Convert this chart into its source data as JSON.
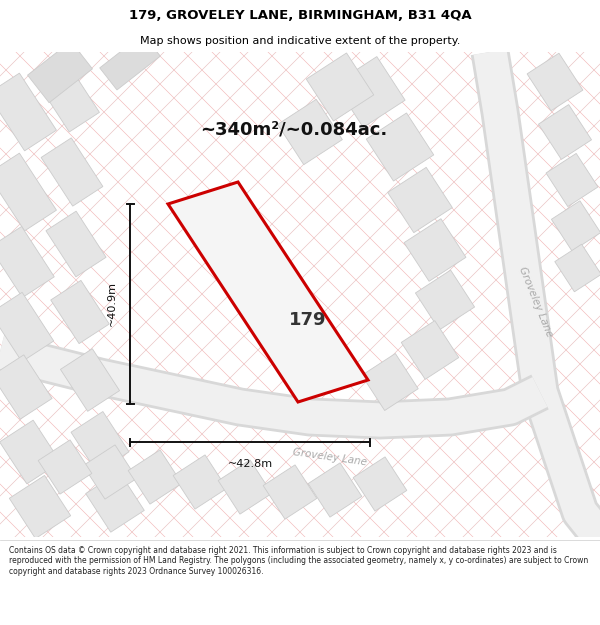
{
  "title_line1": "179, GROVELEY LANE, BIRMINGHAM, B31 4QA",
  "title_line2": "Map shows position and indicative extent of the property.",
  "area_label": "~340m²/~0.084ac.",
  "property_number": "179",
  "width_label": "~42.8m",
  "height_label": "~40.9m",
  "footer_text": "Contains OS data © Crown copyright and database right 2021. This information is subject to Crown copyright and database rights 2023 and is reproduced with the permission of HM Land Registry. The polygons (including the associated geometry, namely x, y co-ordinates) are subject to Crown copyright and database rights 2023 Ordnance Survey 100026316.",
  "map_bg": "#f9f9f9",
  "plot_line_color": "#cc0000",
  "dim_line_color": "#111111",
  "title_color": "#000000",
  "footer_color": "#222222",
  "cadastral_line_color": "#f2b8b8",
  "cadastral_line_color2": "#e8c0c0",
  "bg_plot_color": "#e2e2e2",
  "road_fill": "#e0e0e0",
  "road_label_color": "#aaaaaa"
}
